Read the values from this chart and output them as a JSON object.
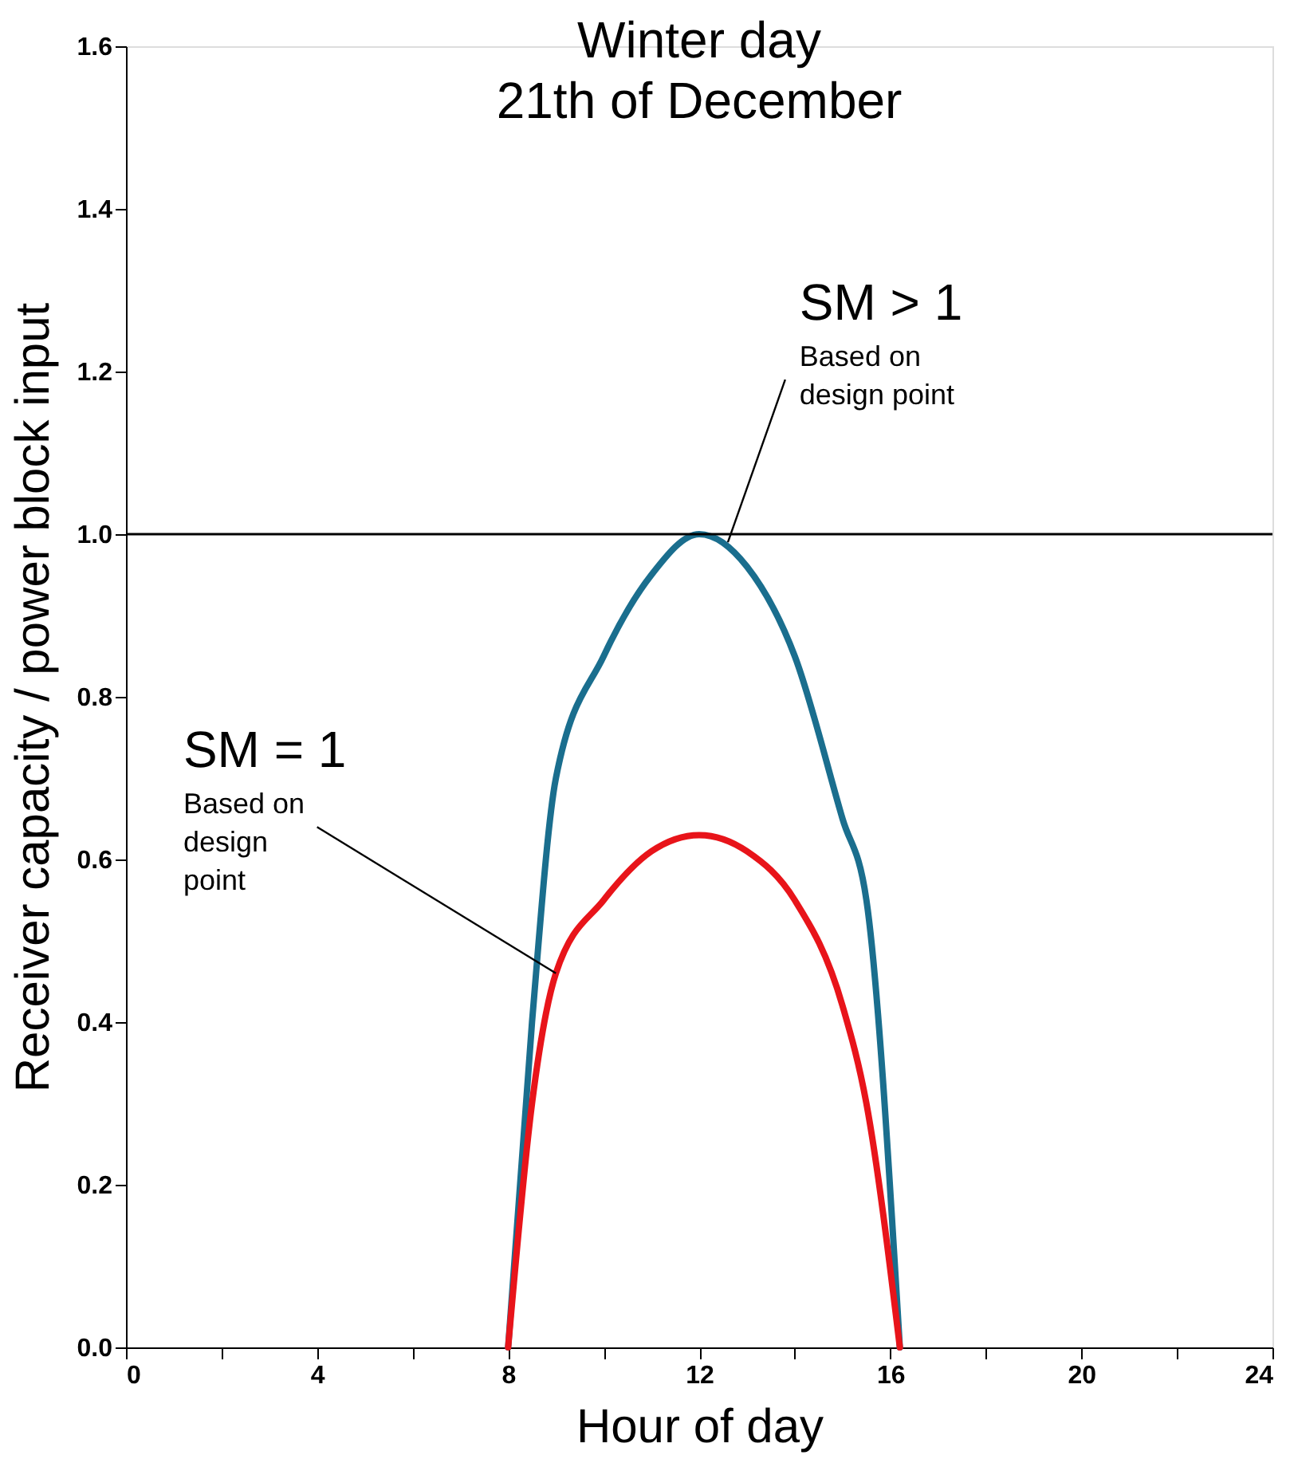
{
  "chart_data": {
    "type": "line",
    "title": "Winter day\n21th of December",
    "xlabel": "Hour of day",
    "ylabel": "Receiver capacity / power block input",
    "x": [
      8,
      8.5,
      9,
      10,
      11,
      12,
      13,
      14,
      15,
      15.5,
      16.2
    ],
    "series": [
      {
        "color": "#1a6e8e",
        "values": [
          0,
          0.4,
          0.7,
          0.85,
          0.95,
          1.0,
          0.96,
          0.85,
          0.65,
          0.55,
          0
        ]
      },
      {
        "color": "#e8141a",
        "values": [
          0,
          0.3,
          0.46,
          0.55,
          0.61,
          0.63,
          0.61,
          0.55,
          0.42,
          0.3,
          0
        ]
      }
    ],
    "xlim": [
      0,
      24
    ],
    "ylim": [
      0,
      1.6
    ],
    "xticks": [
      0,
      {
        "value": 2,
        "label": null
      },
      4,
      {
        "value": 6,
        "label": null
      },
      8,
      {
        "value": 10,
        "label": null
      },
      12,
      {
        "value": 14,
        "label": null
      },
      16,
      {
        "value": 18,
        "label": null
      },
      20,
      {
        "value": 22,
        "label": null
      },
      24
    ],
    "yticks": [
      {
        "value": 0,
        "label": "0.0"
      },
      {
        "value": 0.2,
        "label": "0.2"
      },
      {
        "value": 0.4,
        "label": "0.4"
      },
      {
        "value": 0.6,
        "label": "0.6"
      },
      {
        "value": 0.8,
        "label": "0.8"
      },
      {
        "value": 1.0,
        "label": "1.0"
      },
      {
        "value": 1.2,
        "label": "1.2"
      },
      {
        "value": 1.4,
        "label": "1.4"
      },
      {
        "value": 1.6,
        "label": "1.6"
      }
    ],
    "ref_lines": [
      {
        "axis": "y",
        "value": 1.0,
        "color": "#000000"
      }
    ],
    "annotations": [
      {
        "text": "SM > 1\nBased on\ndesign point",
        "x": 12.6,
        "y": 0.99
      },
      {
        "text": "SM = 1\nBased on\ndesign\npoint",
        "x": 9.0,
        "y": 0.46
      }
    ],
    "grid": false,
    "marker": "none",
    "line_style": "solid"
  }
}
